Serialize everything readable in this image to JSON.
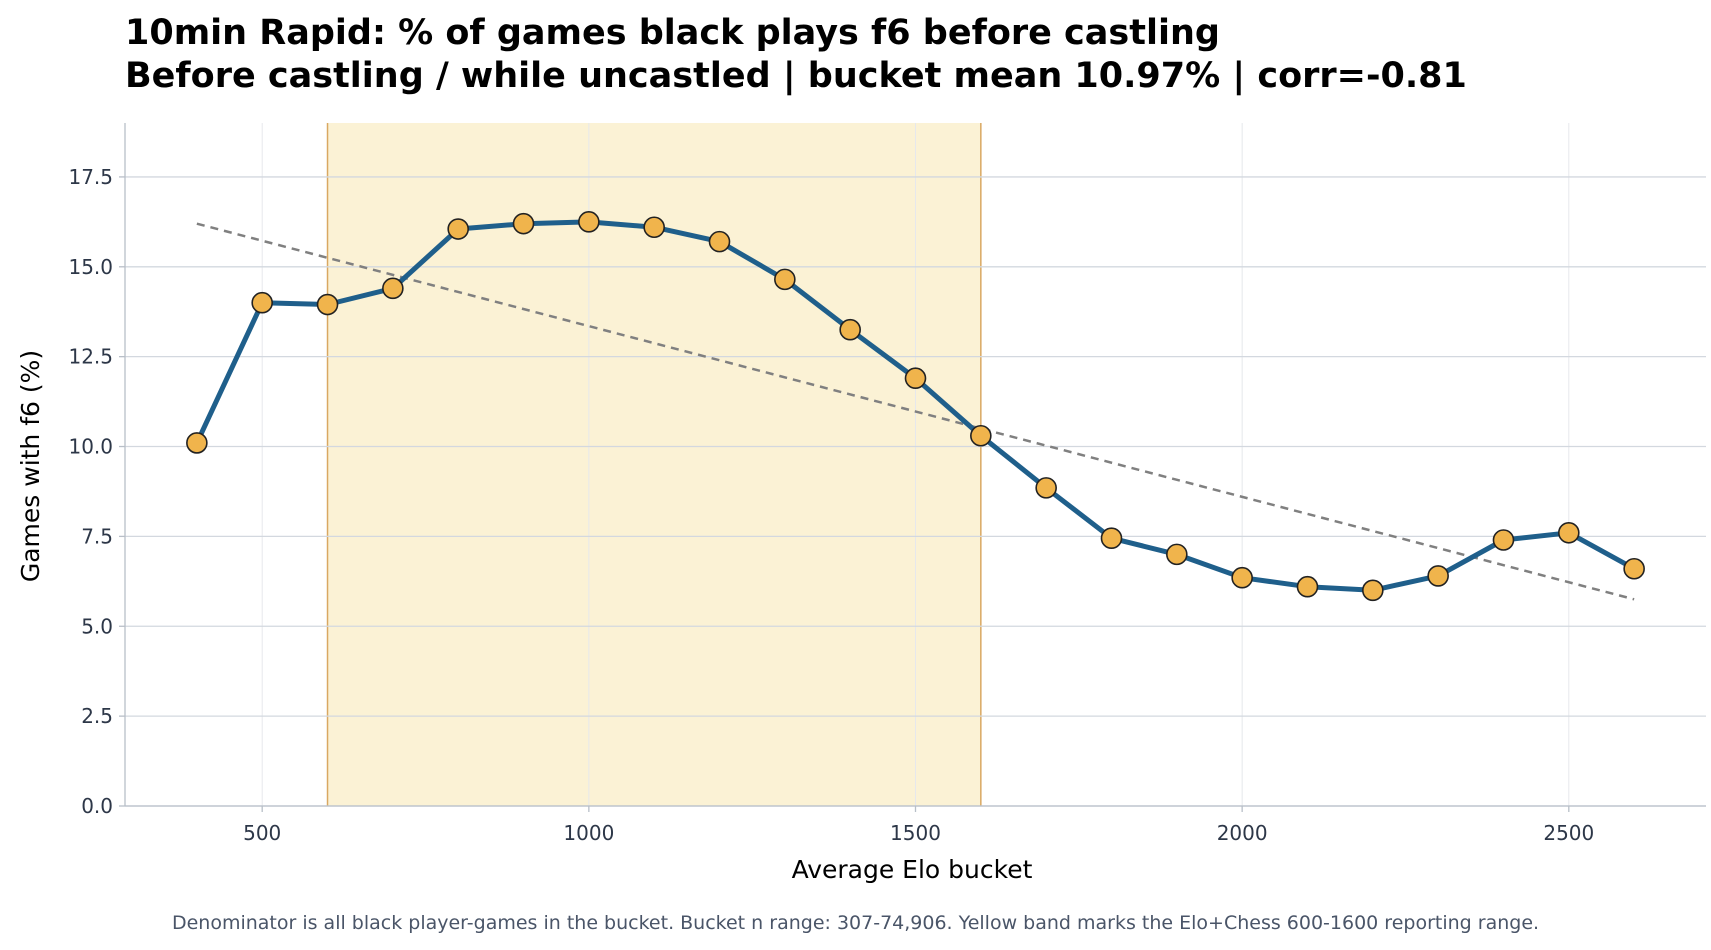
{
  "chart_data": {
    "type": "line",
    "title": "10min Rapid: % of games black plays f6 before castling",
    "subtitle": "Before castling / while uncastled | bucket mean 10.97% | corr=-0.81",
    "xlabel": "Average Elo bucket",
    "ylabel": "Games with f6 (%)",
    "xlim": [
      290,
      2710
    ],
    "ylim": [
      0,
      19
    ],
    "xticks": [
      500,
      1000,
      1500,
      2000,
      2500
    ],
    "yticks": [
      0.0,
      2.5,
      5.0,
      7.5,
      10.0,
      12.5,
      15.0,
      17.5
    ],
    "grid": true,
    "highlight_band": {
      "x_from": 600,
      "x_to": 1600,
      "color": "#fbf2d5"
    },
    "series": [
      {
        "x": [
          400,
          500,
          600,
          700,
          800,
          900,
          1000,
          1100,
          1200,
          1300,
          1400,
          1500,
          1600,
          1700,
          1800,
          1900,
          2000,
          2100,
          2200,
          2300,
          2400,
          2500,
          2600
        ],
        "values": [
          10.1,
          14.0,
          13.95,
          14.4,
          16.05,
          16.2,
          16.25,
          16.1,
          15.7,
          14.65,
          13.25,
          11.9,
          10.3,
          8.85,
          7.45,
          7.0,
          6.35,
          6.1,
          6.0,
          6.4,
          7.4,
          7.6,
          6.6
        ],
        "color": "#1f5f8b",
        "marker_color": "#f0b44c"
      }
    ],
    "trend_line": {
      "x": [
        400,
        2600
      ],
      "y": [
        16.2,
        5.75
      ],
      "color": "#808080",
      "style": "dashed"
    }
  },
  "footer": "Denominator is all black player-games in the bucket. Bucket n range: 307-74,906. Yellow band marks the Elo+Chess 600-1600 reporting range."
}
